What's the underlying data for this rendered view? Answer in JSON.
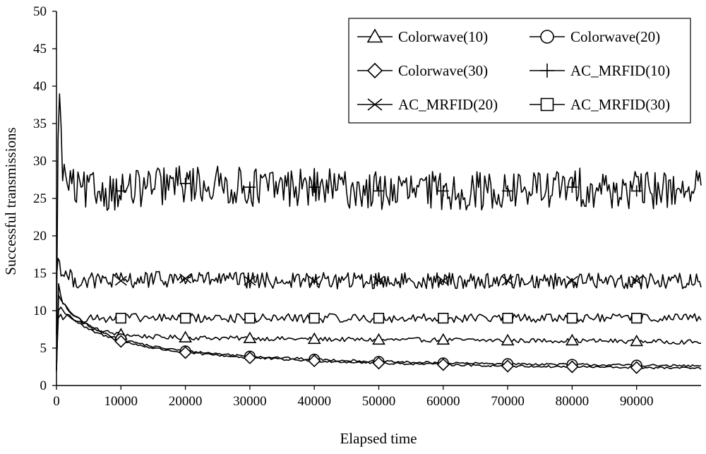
{
  "chart_data": {
    "type": "line",
    "title": "",
    "xlabel": "Elapsed time",
    "ylabel": "Successful transmissions",
    "xlim": [
      0,
      100000
    ],
    "ylim": [
      0,
      50
    ],
    "x_ticks": [
      0,
      10000,
      20000,
      30000,
      40000,
      50000,
      60000,
      70000,
      80000,
      90000
    ],
    "y_ticks": [
      0,
      5,
      10,
      15,
      20,
      25,
      30,
      35,
      40,
      45,
      50
    ],
    "grid": false,
    "legend_position": "top-right",
    "legend_columns": 2,
    "marker_x": [
      10000,
      20000,
      30000,
      40000,
      50000,
      60000,
      70000,
      80000,
      90000
    ],
    "series": [
      {
        "name": "Colorwave(10)",
        "marker": "triangle",
        "x": [
          0,
          300,
          600,
          1000,
          1500,
          2000,
          3000,
          4000,
          5000,
          6000,
          8000,
          10000,
          15000,
          20000,
          30000,
          40000,
          50000,
          60000,
          70000,
          80000,
          90000,
          100000
        ],
        "y": [
          2,
          14,
          12,
          11,
          10.5,
          10,
          9.2,
          8.5,
          8,
          7.5,
          7.1,
          6.8,
          6.5,
          6.4,
          6.3,
          6.2,
          6.1,
          6.1,
          6.0,
          6.0,
          5.9,
          5.8
        ],
        "noise": 0.3
      },
      {
        "name": "Colorwave(20)",
        "marker": "circle",
        "x": [
          0,
          300,
          600,
          1000,
          1500,
          2000,
          3000,
          4000,
          5000,
          6000,
          8000,
          10000,
          15000,
          20000,
          30000,
          40000,
          50000,
          60000,
          70000,
          80000,
          90000,
          100000
        ],
        "y": [
          2,
          12,
          11.5,
          11,
          10.5,
          10,
          9.2,
          8.6,
          8,
          7.5,
          6.8,
          6.2,
          5.2,
          4.6,
          3.9,
          3.5,
          3.2,
          3.0,
          2.9,
          2.8,
          2.7,
          2.6
        ],
        "noise": 0.15
      },
      {
        "name": "Colorwave(30)",
        "marker": "diamond",
        "x": [
          0,
          300,
          600,
          1000,
          1500,
          2000,
          3000,
          4000,
          5000,
          6000,
          8000,
          10000,
          15000,
          20000,
          30000,
          40000,
          50000,
          60000,
          70000,
          80000,
          90000,
          100000
        ],
        "y": [
          3,
          10,
          10.5,
          10,
          9.6,
          9.2,
          8.6,
          8,
          7.5,
          7.1,
          6.5,
          5.9,
          5.0,
          4.4,
          3.7,
          3.3,
          3.0,
          2.8,
          2.6,
          2.5,
          2.4,
          2.3
        ],
        "noise": 0.15
      },
      {
        "name": "AC_MRFID(10)",
        "marker": "plus",
        "x": [
          0,
          300,
          600,
          1000,
          2000,
          3000,
          5000,
          10000,
          20000,
          30000,
          40000,
          50000,
          60000,
          70000,
          80000,
          90000,
          100000
        ],
        "y": [
          5,
          43,
          35,
          28,
          27,
          26,
          26,
          26,
          27,
          26.5,
          26.5,
          26,
          26,
          26,
          26.5,
          26,
          26.5
        ],
        "noise": 2.6
      },
      {
        "name": "AC_MRFID(20)",
        "marker": "x",
        "x": [
          0,
          300,
          600,
          1000,
          2000,
          3000,
          5000,
          10000,
          20000,
          30000,
          40000,
          50000,
          60000,
          70000,
          80000,
          90000,
          100000
        ],
        "y": [
          15,
          17,
          16,
          15,
          14.5,
          14,
          14,
          14,
          14.3,
          14,
          14,
          14,
          14,
          14,
          14,
          14,
          14
        ],
        "noise": 1.1
      },
      {
        "name": "AC_MRFID(30)",
        "marker": "square",
        "x": [
          0,
          300,
          600,
          1000,
          2000,
          3000,
          5000,
          10000,
          20000,
          30000,
          40000,
          50000,
          60000,
          70000,
          80000,
          90000,
          100000
        ],
        "y": [
          9,
          9.3,
          9.5,
          9.2,
          9,
          9,
          9,
          9,
          9,
          9,
          9,
          9,
          9,
          9,
          9,
          9,
          9
        ],
        "noise": 0.6
      }
    ]
  }
}
